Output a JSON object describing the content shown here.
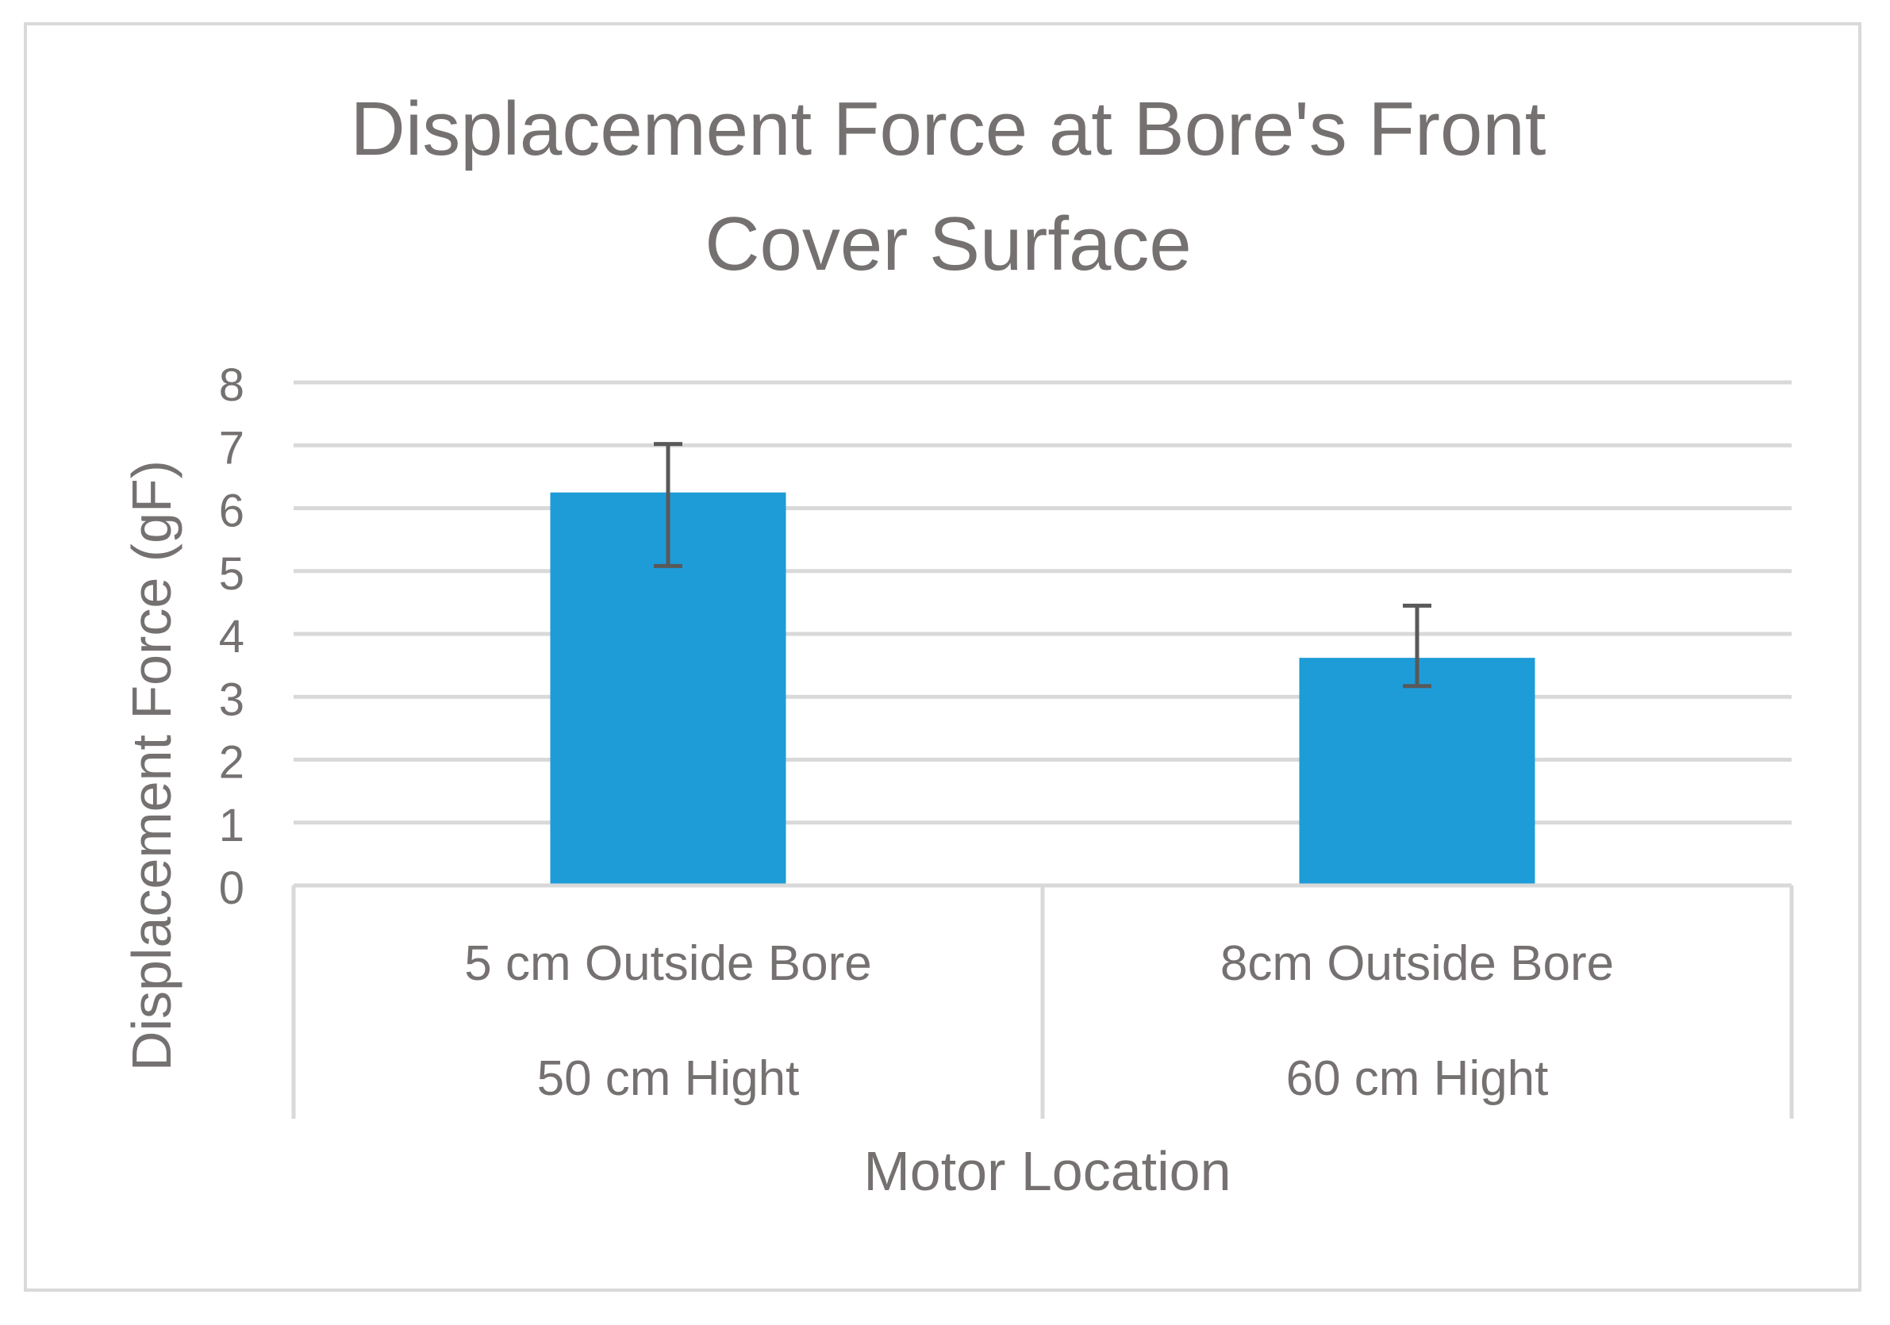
{
  "chart_data": {
    "type": "bar",
    "title_lines": [
      "Displacement Force at Bore's Front",
      "Cover Surface"
    ],
    "xlabel": "Motor Location",
    "ylabel": "Displacement Force (gF)",
    "ylim": [
      0,
      8
    ],
    "yticks": [
      0,
      1,
      2,
      3,
      4,
      5,
      6,
      7,
      8
    ],
    "grid": true,
    "legend": "none",
    "categories": [
      {
        "line1": "5 cm Outside Bore",
        "line2": "50 cm Hight"
      },
      {
        "line1": "8cm Outside Bore",
        "line2": "60 cm Hight"
      }
    ],
    "values": [
      6.25,
      3.62
    ],
    "error_upper": [
      7.02,
      4.45
    ],
    "error_lower": [
      5.08,
      3.17
    ],
    "colors": {
      "bar": "#1e9cd8",
      "error_bar": "#595959",
      "grid": "#d9d9d9",
      "text": "#767171",
      "frame": "#d9d9d9"
    }
  }
}
